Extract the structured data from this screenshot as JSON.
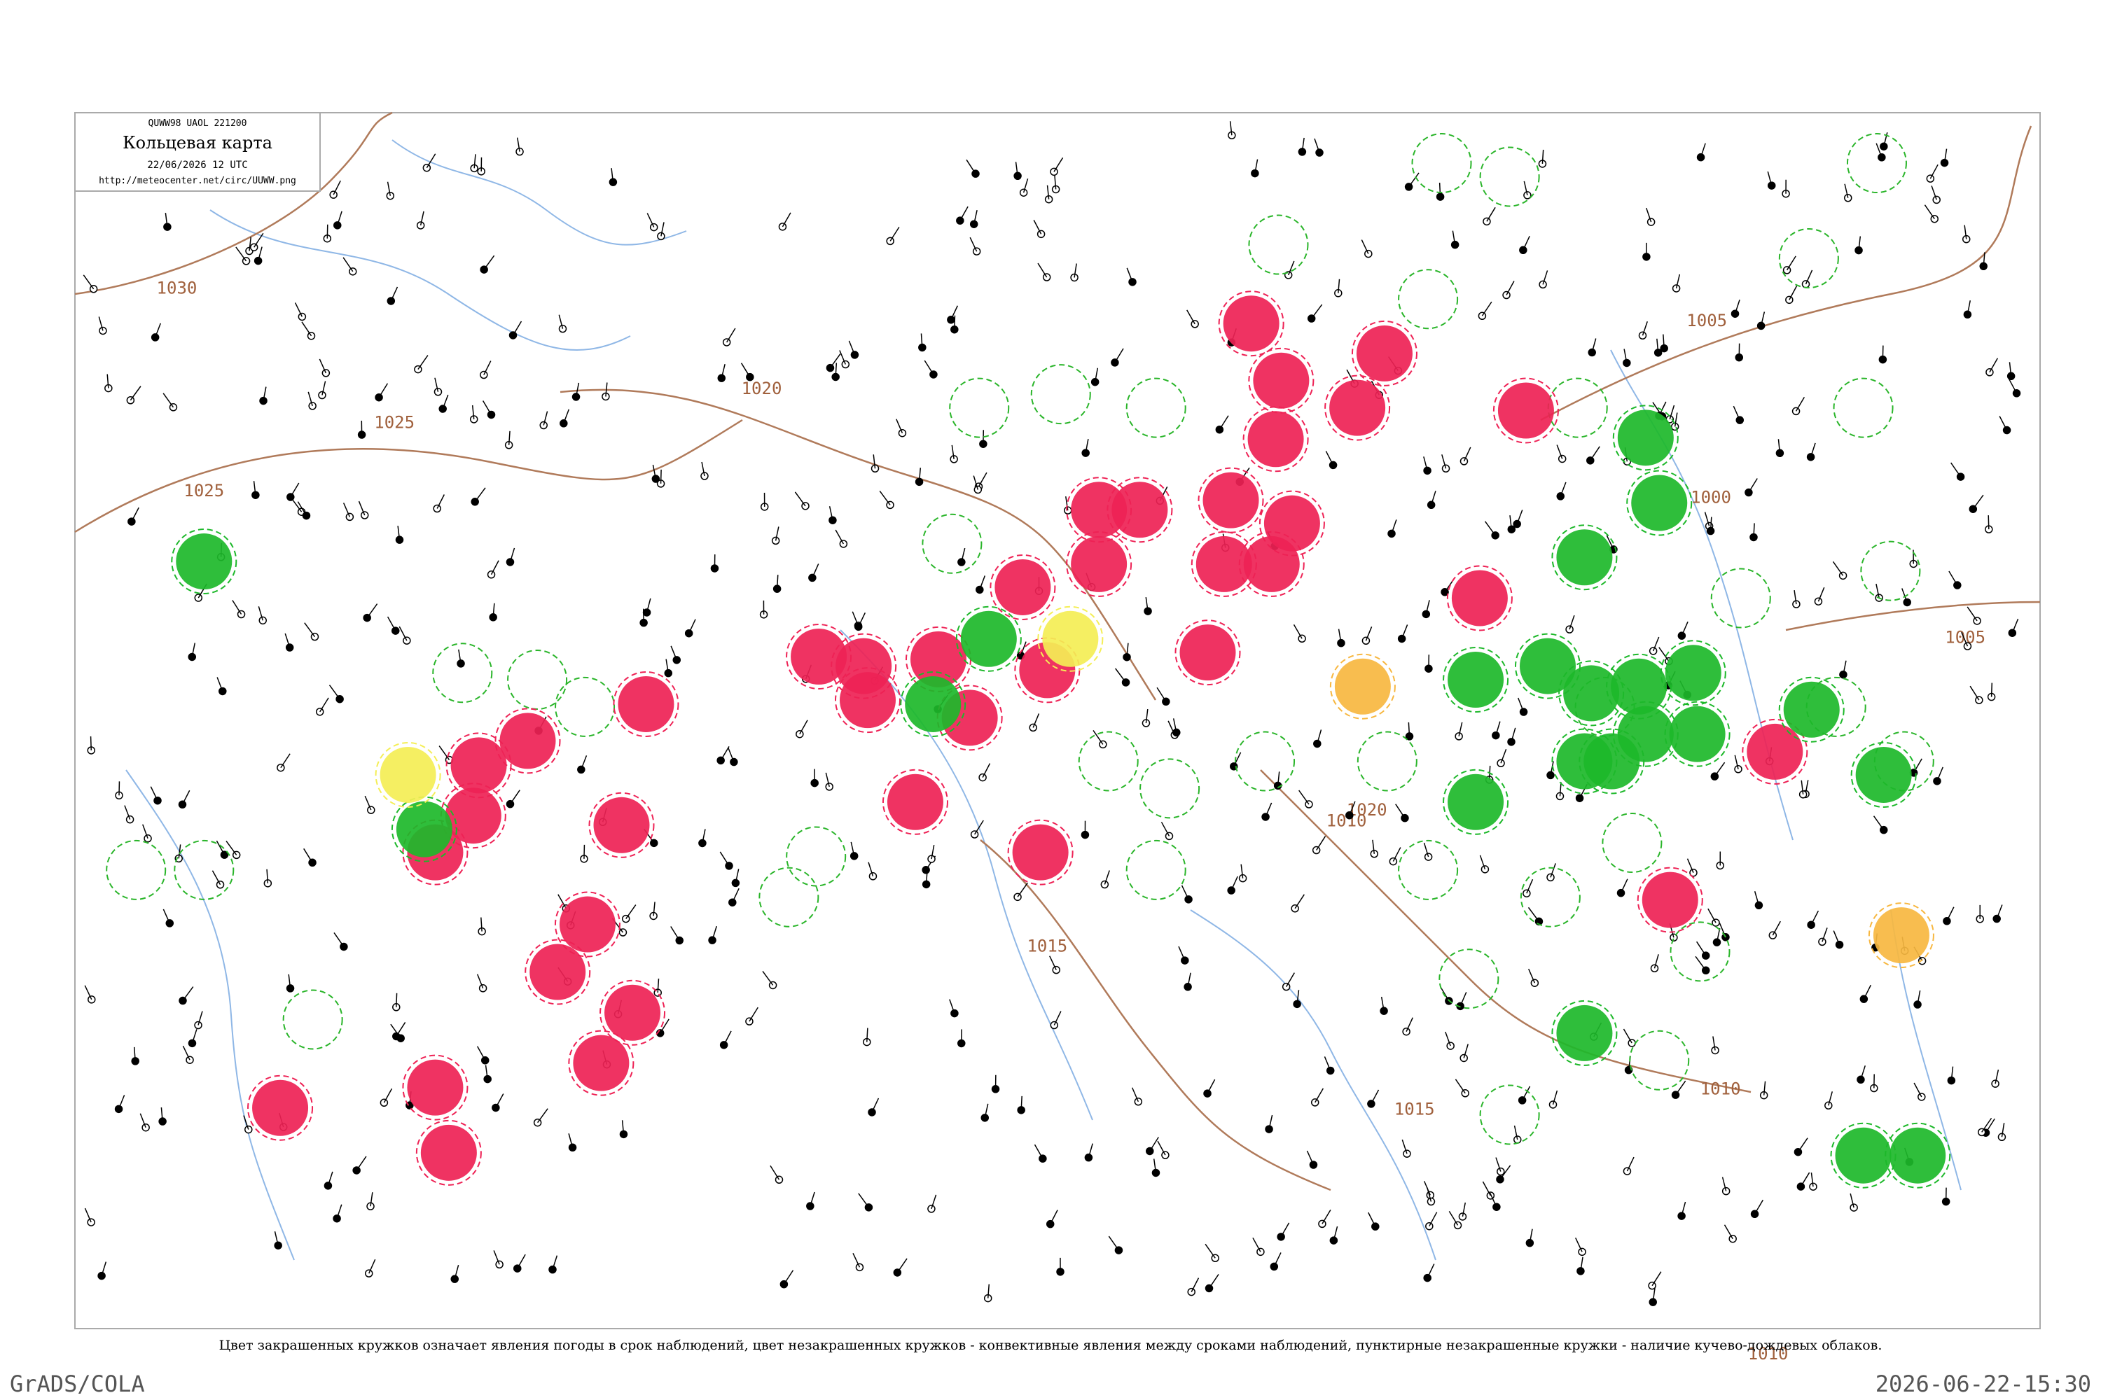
{
  "header": {
    "code": "QUWW98  UAOL  221200",
    "title": "Кольцевая карта",
    "date": "22/06/2026 12 UTC",
    "url": "http://meteocenter.net/circ/UUWW.png"
  },
  "isobars": {
    "labels": [
      "1030",
      "1025",
      "1025",
      "1020",
      "1020",
      "1015",
      "1015",
      "1010",
      "1010",
      "1005",
      "1005",
      "1000",
      "1010"
    ]
  },
  "caption": "Цвет закрашенных кружков означает явления погоды в срок наблюдений, цвет незакрашенных кружков - конвективные явления между сроками наблюдений, пунктирные незакрашенные кружки - наличие кучево-дождевых облаков.",
  "footer": {
    "left": "GrADS/COLA",
    "right": "2026-06-22-15:30"
  }
}
